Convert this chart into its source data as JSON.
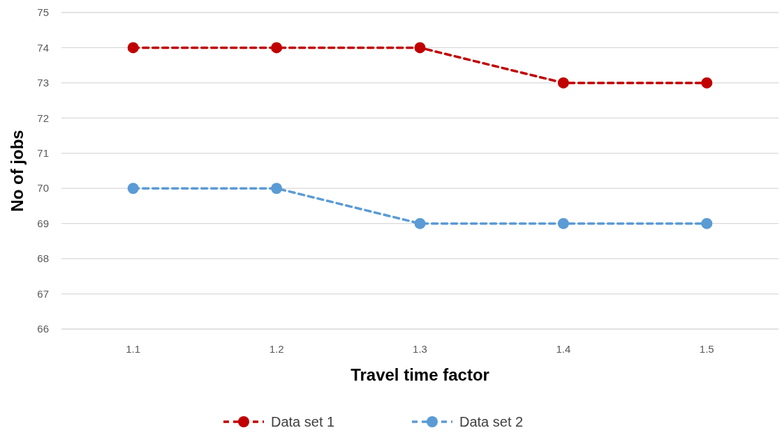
{
  "chart_data": {
    "type": "line",
    "xlabel": "Travel time factor",
    "ylabel": "No of jobs",
    "categories": [
      "1.1",
      "1.2",
      "1.3",
      "1.4",
      "1.5"
    ],
    "series": [
      {
        "name": "Data set 1",
        "color": "#c00000",
        "values": [
          74,
          74,
          74,
          73,
          73
        ]
      },
      {
        "name": "Data set 2",
        "color": "#5b9bd5",
        "values": [
          70,
          70,
          69,
          69,
          69
        ]
      }
    ],
    "ylim": [
      66,
      75
    ],
    "yticks": [
      66,
      67,
      68,
      69,
      70,
      71,
      72,
      73,
      74,
      75
    ],
    "grid": "y",
    "legend": "bottom",
    "marker": "circle",
    "line_style": "dashed"
  }
}
